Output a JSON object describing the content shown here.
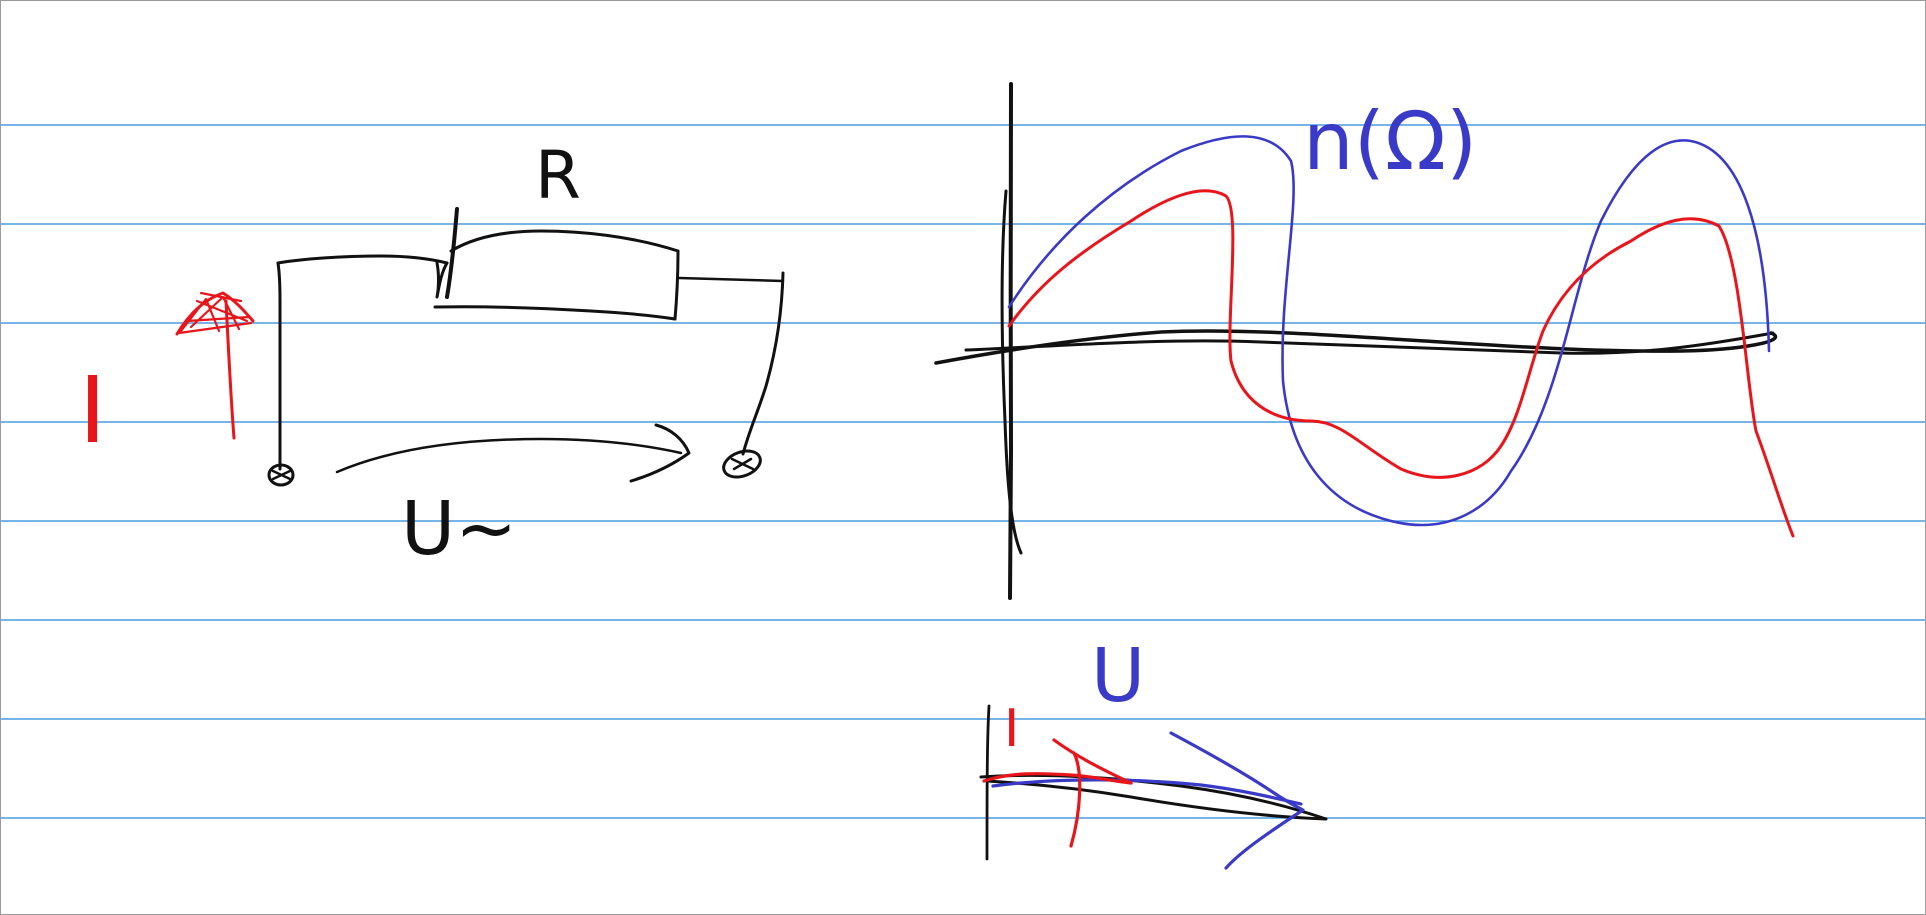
{
  "colors": {
    "ruling": "#4a9be0",
    "ink_black": "#111111",
    "ink_red": "#e8161b",
    "ink_blue": "#3a3ac8"
  },
  "circuit": {
    "resistor_label": "R",
    "current_label": "I",
    "voltage_label": "U~"
  },
  "waveform_graph": {
    "curve_label": "n(Ω)"
  },
  "phasor_diagram": {
    "voltage_label": "U",
    "current_label": "I"
  }
}
